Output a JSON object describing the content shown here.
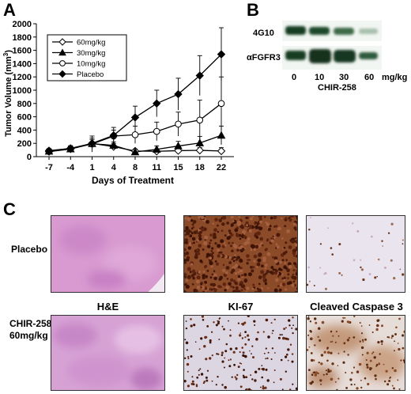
{
  "panels": {
    "a": "A",
    "b": "B",
    "c": "C"
  },
  "chart_data": {
    "type": "line",
    "title": "",
    "xlabel": "Days of Treatment",
    "ylabel_main": "Tumor Volume (mm",
    "ylabel_sup": "3",
    "ylabel_end": ")",
    "x": [
      "-7",
      "-4",
      "1",
      "4",
      "8",
      "11",
      "15",
      "18",
      "22"
    ],
    "ylim": [
      0,
      2000
    ],
    "yticks": [
      "0",
      "200",
      "400",
      "600",
      "800",
      "1000",
      "1200",
      "1400",
      "1600",
      "1800",
      "2000"
    ],
    "legend_position": "top-left",
    "series": [
      {
        "name": "60mg/kg",
        "marker": "diamond-open",
        "values": [
          75,
          115,
          200,
          150,
          85,
          80,
          90,
          95,
          85
        ],
        "errors": [
          20,
          30,
          80,
          45,
          30,
          25,
          30,
          40,
          50
        ]
      },
      {
        "name": "30mg/kg",
        "marker": "triangle-filled",
        "values": [
          80,
          115,
          195,
          170,
          70,
          110,
          160,
          205,
          320
        ],
        "errors": [
          20,
          30,
          60,
          50,
          40,
          50,
          70,
          100,
          140
        ]
      },
      {
        "name": "10mg/kg",
        "marker": "circle-open",
        "values": [
          85,
          120,
          190,
          310,
          330,
          380,
          490,
          550,
          800
        ],
        "errors": [
          20,
          35,
          120,
          90,
          130,
          140,
          180,
          300,
          400
        ]
      },
      {
        "name": "Placebo",
        "marker": "diamond-filled",
        "values": [
          90,
          125,
          200,
          320,
          590,
          800,
          940,
          1220,
          1540
        ],
        "errors": [
          20,
          40,
          80,
          120,
          170,
          200,
          240,
          300,
          400
        ]
      }
    ]
  },
  "blot": {
    "row_labels": [
      "4G10",
      "αFGFR3"
    ],
    "doses": [
      "0",
      "10",
      "30",
      "60"
    ],
    "unit": "mg/kg",
    "drug": "CHIR-258"
  },
  "histology": {
    "row_labels": [
      "Placebo",
      "CHIR-258\n60mg/kg"
    ],
    "col_labels": [
      "H&E",
      "KI-67",
      "Cleaved Caspase 3"
    ]
  },
  "colors": {
    "he_pink": "#d89ad0",
    "ki67_brown": "#7a3a1e",
    "ihc_background": "#eae4ee"
  }
}
